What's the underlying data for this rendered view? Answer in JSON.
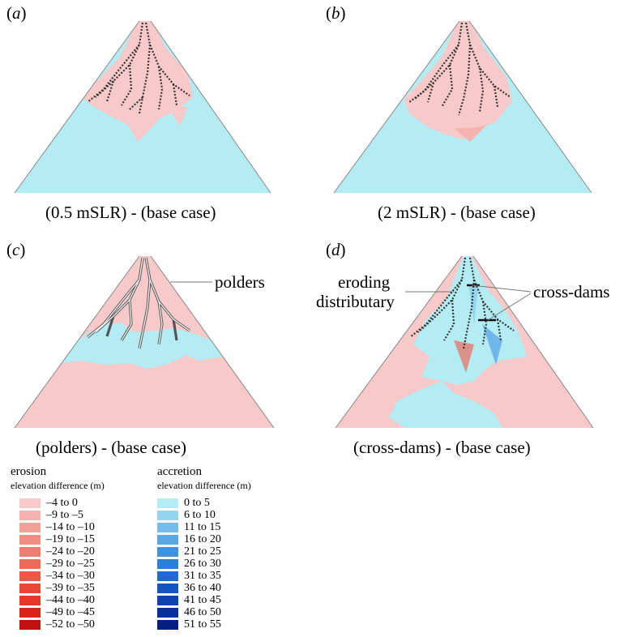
{
  "panels": [
    {
      "label_prefix": "(",
      "label_letter": "a",
      "label_suffix": ")",
      "caption": "(0.5 mSLR) - (base case)"
    },
    {
      "label_prefix": "(",
      "label_letter": "b",
      "label_suffix": ")",
      "caption": "(2 mSLR) - (base case)"
    },
    {
      "label_prefix": "(",
      "label_letter": "c",
      "label_suffix": ")",
      "caption": "(polders) - (base case)"
    },
    {
      "label_prefix": "(",
      "label_letter": "d",
      "label_suffix": ")",
      "caption": "(cross-dams) - (base case)"
    }
  ],
  "annotations": {
    "polders": "polders",
    "eroding_line1": "eroding",
    "eroding_line2": "distributary",
    "cross_dams": "cross-dams"
  },
  "legend": {
    "erosion": {
      "title": "erosion",
      "subtitle": "elevation difference (m)",
      "items": [
        {
          "label": "–4 to 0",
          "color": "#f7c9c9"
        },
        {
          "label": "–9 to –5",
          "color": "#f4b3ae"
        },
        {
          "label": "–14 to –10",
          "color": "#f2a199"
        },
        {
          "label": "–19 to –15",
          "color": "#f08e84"
        },
        {
          "label": "–24 to –20",
          "color": "#ee7c6f"
        },
        {
          "label": "–29 to –25",
          "color": "#ec6a5a"
        },
        {
          "label": "–34 to –30",
          "color": "#ea5848"
        },
        {
          "label": "–39 to –35",
          "color": "#e94637"
        },
        {
          "label": "–44 to –40",
          "color": "#e63627"
        },
        {
          "label": "–49 to –45",
          "color": "#d8231a"
        },
        {
          "label": "–52 to –50",
          "color": "#c21010"
        }
      ]
    },
    "accretion": {
      "title": "accretion",
      "subtitle": "elevation difference (m)",
      "items": [
        {
          "label": "0 to 5",
          "color": "#b3ecf3"
        },
        {
          "label": "6 to 10",
          "color": "#94d6f0"
        },
        {
          "label": "11 to 15",
          "color": "#74bdea"
        },
        {
          "label": "16 to 20",
          "color": "#58a6e4"
        },
        {
          "label": "21 to 25",
          "color": "#3f92de"
        },
        {
          "label": "26 to 30",
          "color": "#2a7fd8"
        },
        {
          "label": "31 to 35",
          "color": "#1b6bd0"
        },
        {
          "label": "36 to 40",
          "color": "#1356c2"
        },
        {
          "label": "41 to 45",
          "color": "#0c43b1"
        },
        {
          "label": "46 to 50",
          "color": "#08309c"
        },
        {
          "label": "51 to 55",
          "color": "#041f82"
        }
      ]
    }
  },
  "colors": {
    "erosion_base": "#f7c9c9",
    "accretion_base": "#b3ecf3",
    "channel": "#333333"
  }
}
